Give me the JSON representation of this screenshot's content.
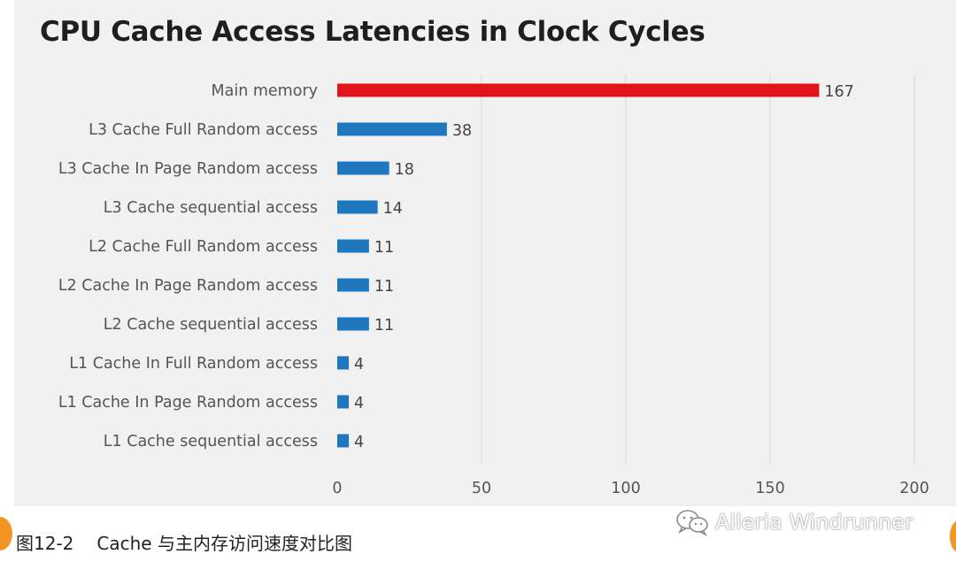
{
  "chart_data": {
    "type": "bar",
    "orientation": "horizontal",
    "title": "CPU Cache Access Latencies in Clock Cycles",
    "categories": [
      "Main memory",
      "L3 Cache Full Random access",
      "L3 Cache In Page Random access",
      "L3 Cache sequential access",
      "L2 Cache Full Random access",
      "L2 Cache In Page Random access",
      "L2 Cache sequential access",
      "L1 Cache In Full Random access",
      "L1 Cache In Page Random access",
      "L1 Cache sequential access"
    ],
    "values": [
      167,
      38,
      18,
      14,
      11,
      11,
      11,
      4,
      4,
      4
    ],
    "bar_colors": [
      "#e2141b",
      "#1f77c0",
      "#1f77c0",
      "#1f77c0",
      "#1f77c0",
      "#1f77c0",
      "#1f77c0",
      "#1f77c0",
      "#1f77c0",
      "#1f77c0"
    ],
    "xlim": [
      0,
      200
    ],
    "xticks": [
      0,
      50,
      100,
      150,
      200
    ],
    "grid": true,
    "data_labels": true
  },
  "caption": {
    "figure_number": "图12-2",
    "text": "Cache 与主内存访问速度对比图"
  },
  "watermark": {
    "text": "Alleria Windrunner",
    "icon": "wechat-icon"
  }
}
